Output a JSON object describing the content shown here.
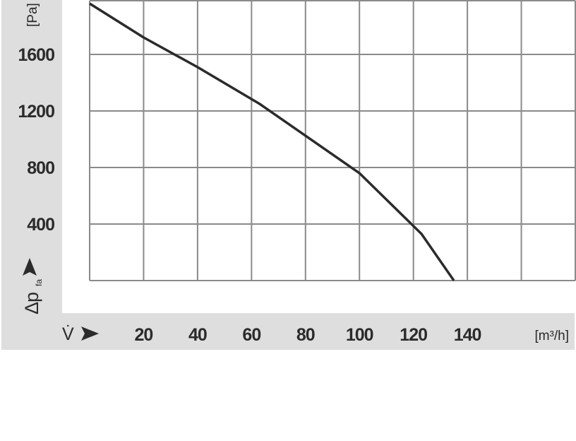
{
  "chart_data": {
    "type": "line",
    "xlabel": "V̇",
    "xunit": "[m³/h]",
    "ylabel": "Δp",
    "ylabel_subscript": "fa",
    "yunit": "[Pa]",
    "xlim": [
      0,
      180
    ],
    "ylim": [
      0,
      1980
    ],
    "grid": true,
    "x_ticks": [
      20,
      40,
      60,
      80,
      100,
      120,
      140
    ],
    "y_ticks": [
      400,
      800,
      1200,
      1600
    ],
    "series": [
      {
        "x": [
          0,
          20,
          40,
          63,
          100,
          123,
          135
        ],
        "y": [
          1960,
          1720,
          1510,
          1250,
          760,
          330,
          0
        ]
      }
    ],
    "colors": {
      "band": "#dedede",
      "grid": "#8a8a8a",
      "line": "#2b2b2b"
    }
  }
}
